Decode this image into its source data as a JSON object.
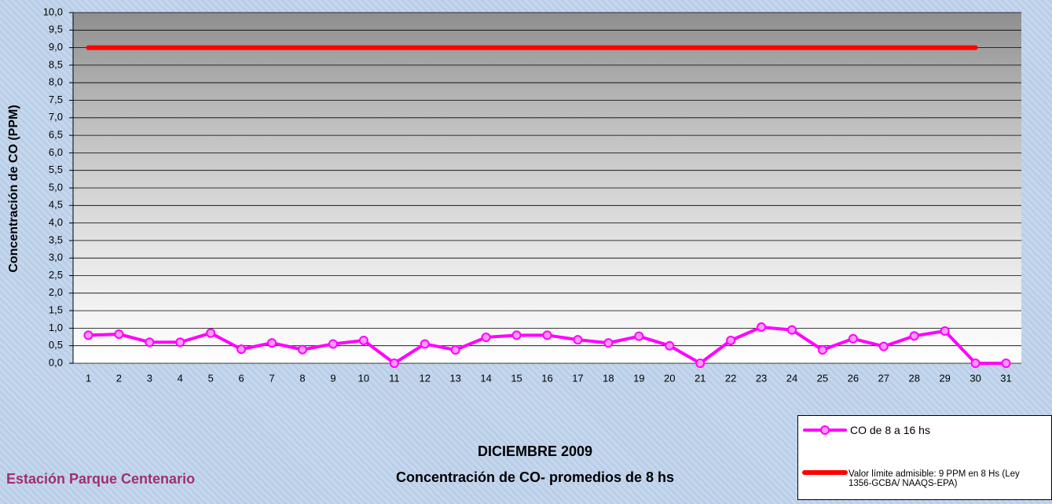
{
  "chart_data": {
    "type": "line",
    "title": "DICIEMBRE 2009",
    "subtitle": "Concentración de CO- promedios de 8 hs",
    "footnote": "Estación Parque Centenario",
    "y_label": "Concentración de CO (PPM)",
    "categories": [
      "1",
      "2",
      "3",
      "4",
      "5",
      "6",
      "7",
      "8",
      "9",
      "10",
      "11",
      "12",
      "13",
      "14",
      "15",
      "16",
      "17",
      "18",
      "19",
      "20",
      "21",
      "22",
      "23",
      "24",
      "25",
      "26",
      "27",
      "28",
      "29",
      "30",
      "31"
    ],
    "series": [
      {
        "name": "CO de 8 a 16 hs",
        "color": "#ff00ff",
        "markers": true,
        "values": [
          0.8,
          0.83,
          0.6,
          0.6,
          0.86,
          0.4,
          0.58,
          0.39,
          0.55,
          0.65,
          0.0,
          0.55,
          0.38,
          0.74,
          0.8,
          0.8,
          0.67,
          0.58,
          0.77,
          0.5,
          0.0,
          0.65,
          1.03,
          0.95,
          0.38,
          0.7,
          0.48,
          0.78,
          0.92,
          0.0,
          0.0
        ]
      },
      {
        "name": "Valor límite admisible: 9 PPM en 8 Hs (Ley 1356-GCBA/ NAAQS-EPA)",
        "color": "#ff0000",
        "markers": false,
        "values": [
          9,
          9,
          9,
          9,
          9,
          9,
          9,
          9,
          9,
          9,
          9,
          9,
          9,
          9,
          9,
          9,
          9,
          9,
          9,
          9,
          9,
          9,
          9,
          9,
          9,
          9,
          9,
          9,
          9,
          9,
          null
        ]
      }
    ],
    "ylim": [
      0,
      10
    ],
    "yticks": [
      {
        "value": 0,
        "label": "0,0"
      },
      {
        "value": 0.5,
        "label": "0,5"
      },
      {
        "value": 1,
        "label": "1,0"
      },
      {
        "value": 1.5,
        "label": "1,5"
      },
      {
        "value": 2,
        "label": "2,0"
      },
      {
        "value": 2.5,
        "label": "2,5"
      },
      {
        "value": 3,
        "label": "3,0"
      },
      {
        "value": 3.5,
        "label": "3,5"
      },
      {
        "value": 4,
        "label": "4,0"
      },
      {
        "value": 4.5,
        "label": "4,5"
      },
      {
        "value": 5,
        "label": "5,0"
      },
      {
        "value": 5.5,
        "label": "5,5"
      },
      {
        "value": 6,
        "label": "6,0"
      },
      {
        "value": 6.5,
        "label": "6,5"
      },
      {
        "value": 7,
        "label": "7,0"
      },
      {
        "value": 7.5,
        "label": "7,5"
      },
      {
        "value": 8,
        "label": "8,0"
      },
      {
        "value": 8.5,
        "label": "8,5"
      },
      {
        "value": 9,
        "label": "9,0"
      },
      {
        "value": 9.5,
        "label": "9,5"
      },
      {
        "value": 10,
        "label": "10,0"
      }
    ],
    "grid": true
  }
}
